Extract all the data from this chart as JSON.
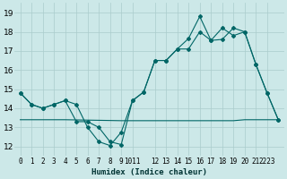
{
  "xlabel": "Humidex (Indice chaleur)",
  "bg_color": "#cce8e8",
  "grid_color": "#aacccc",
  "line_color": "#006666",
  "xlim": [
    -0.5,
    23.5
  ],
  "ylim": [
    11.5,
    19.5
  ],
  "yticks": [
    12,
    13,
    14,
    15,
    16,
    17,
    18,
    19
  ],
  "xtick_positions": [
    0,
    1,
    2,
    3,
    4,
    5,
    6,
    7,
    8,
    9,
    10,
    12,
    13,
    14,
    15,
    16,
    17,
    18,
    19,
    20,
    21,
    22
  ],
  "xtick_labels": [
    "0",
    "1",
    "2",
    "3",
    "4",
    "5",
    "6",
    "7",
    "8",
    "9",
    "1011",
    "12",
    "13",
    "14",
    "15",
    "16",
    "17",
    "18",
    "19",
    "20",
    "21",
    "2223"
  ],
  "series1_x": [
    0,
    1,
    2,
    3,
    4,
    5,
    6,
    7,
    8,
    9,
    10,
    11,
    12,
    13,
    14,
    15,
    16,
    17,
    18,
    19,
    20,
    21,
    22,
    23
  ],
  "series1_y": [
    14.8,
    14.2,
    14.0,
    14.2,
    14.4,
    14.2,
    13.0,
    12.25,
    12.05,
    12.75,
    14.4,
    14.85,
    16.5,
    16.5,
    17.1,
    17.1,
    18.0,
    17.55,
    18.2,
    17.8,
    18.0,
    16.3,
    14.8,
    13.4
  ],
  "series2_x": [
    0,
    1,
    2,
    3,
    4,
    5,
    6,
    7,
    8,
    9,
    10,
    11,
    12,
    13,
    14,
    15,
    16,
    17,
    18,
    19,
    20,
    21,
    22,
    23
  ],
  "series2_y": [
    14.8,
    14.2,
    14.0,
    14.2,
    14.4,
    13.3,
    13.3,
    13.0,
    12.25,
    12.1,
    14.4,
    14.85,
    16.5,
    16.5,
    17.1,
    17.65,
    18.8,
    17.55,
    17.6,
    18.2,
    18.0,
    16.3,
    14.8,
    13.4
  ],
  "series3_x": [
    0,
    4,
    9,
    15,
    16,
    19,
    20,
    21,
    22,
    23
  ],
  "series3_y": [
    13.4,
    13.4,
    13.35,
    13.35,
    13.35,
    13.35,
    13.4,
    13.4,
    13.4,
    13.4
  ],
  "xlabel_fontsize": 6.5,
  "tick_fontsize": 5.5,
  "ytick_fontsize": 6.5
}
